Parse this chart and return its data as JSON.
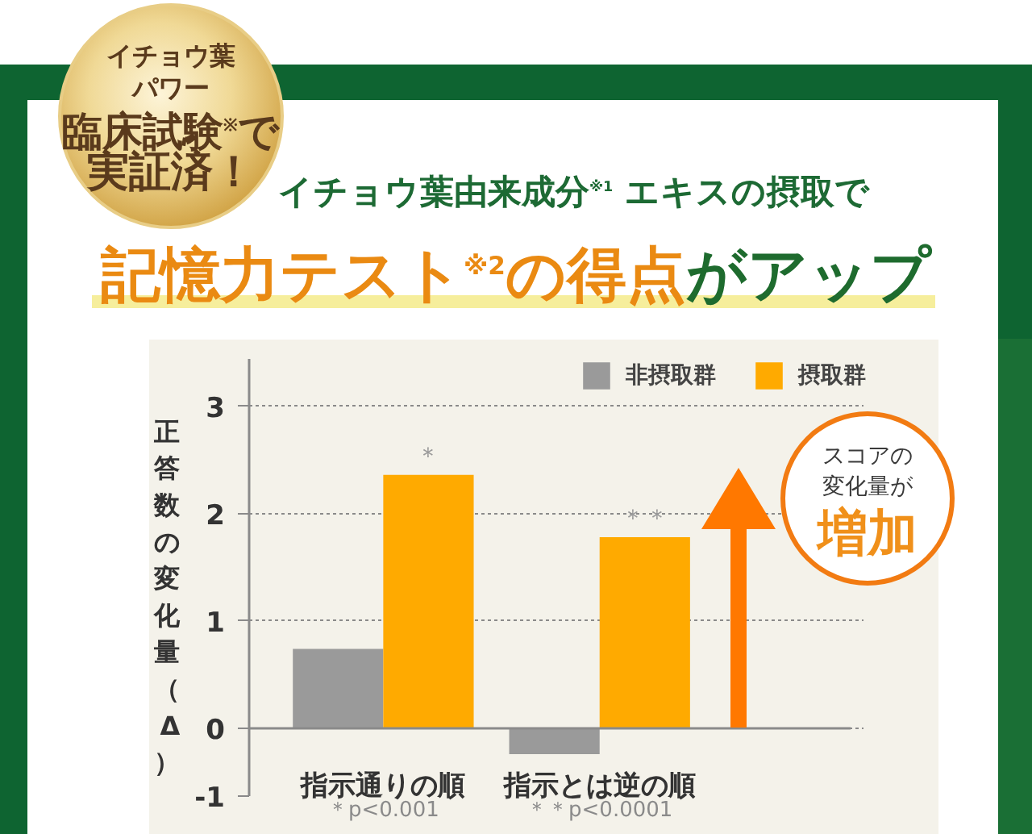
{
  "chart_data": {
    "type": "bar",
    "title": "記憶力テスト$^{※2}$の得点がアップ",
    "subtitle": "イチョウ葉由来成分$^{※1}$ エキスの摂取で",
    "ylabel": "正答数の変化量（Δ）",
    "categories": [
      "指示通りの順",
      "指示とは逆の順"
    ],
    "series": [
      {
        "name": "非摂取群",
        "color": "#9a9a9a",
        "values": [
          0.74,
          -0.24
        ]
      },
      {
        "name": "摂取群",
        "color": "#ffaa00",
        "values": [
          2.36,
          1.78
        ]
      }
    ],
    "ylim": [
      -0.63,
      3.44
    ],
    "yticks": [
      {
        "value": -0.63,
        "label": "-1"
      },
      0,
      1,
      2,
      3
    ],
    "grid": "y",
    "legend": "top right",
    "annotations": [
      {
        "text": "＊",
        "x": "指示通りの順",
        "y": 2.36
      },
      {
        "text": "＊＊",
        "x": "指示とは逆の順",
        "y": 1.78
      },
      "＊p<0.001",
      "＊＊p<0.0001",
      "イチョウ葉",
      "パワー",
      "臨床試験$^{※}$で",
      "実証済！",
      "スコアの",
      "変化量が",
      "増加"
    ]
  }
}
